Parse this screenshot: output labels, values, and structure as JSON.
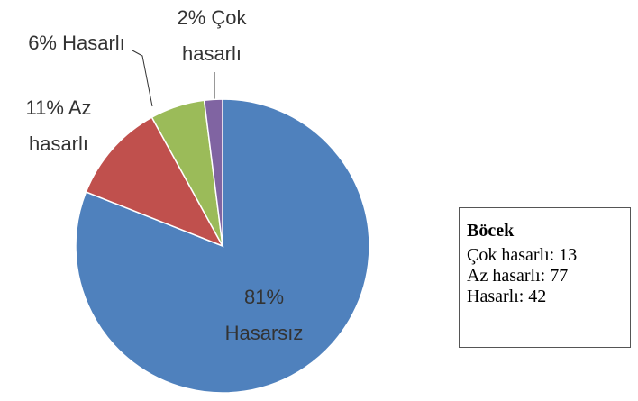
{
  "chart_data": {
    "type": "pie",
    "categories": [
      "Hasarsız",
      "Az hasarlı",
      "Hasarlı",
      "Çok hasarlı"
    ],
    "values": [
      81,
      11,
      6,
      2
    ],
    "value_labels": [
      "81%",
      "11%",
      "6%",
      "2%"
    ],
    "colors": [
      "#4f81bd",
      "#c0504d",
      "#9bbb59",
      "#8064a2"
    ]
  },
  "note": {
    "title": "Böcek",
    "lines": [
      "Çok hasarlı: 13",
      "Az hasarlı: 77",
      "Hasarlı: 42"
    ]
  }
}
